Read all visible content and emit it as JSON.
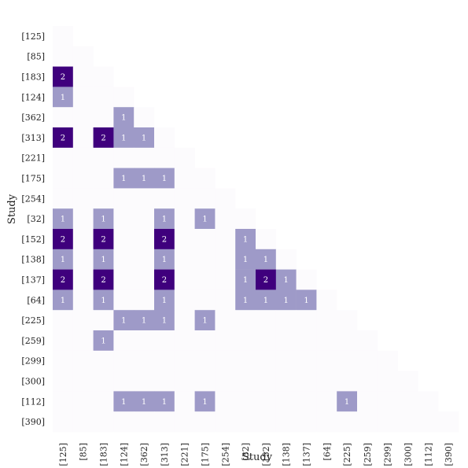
{
  "chart_data": {
    "type": "heatmap",
    "xlabel": "Study",
    "ylabel": "Study",
    "studies": [
      "[125]",
      "[85]",
      "[183]",
      "[124]",
      "[362]",
      "[313]",
      "[221]",
      "[175]",
      "[254]",
      "[32]",
      "[152]",
      "[138]",
      "[137]",
      "[64]",
      "[225]",
      "[259]",
      "[299]",
      "[300]",
      "[112]",
      "[390]"
    ],
    "matrix": [
      [
        0
      ],
      [
        0,
        0
      ],
      [
        2,
        0,
        0
      ],
      [
        1,
        0,
        0,
        0
      ],
      [
        0,
        0,
        0,
        1,
        0
      ],
      [
        2,
        0,
        2,
        1,
        1,
        0
      ],
      [
        0,
        0,
        0,
        0,
        0,
        0,
        0
      ],
      [
        0,
        0,
        0,
        1,
        1,
        1,
        0,
        0
      ],
      [
        0,
        0,
        0,
        0,
        0,
        0,
        0,
        0,
        0
      ],
      [
        1,
        0,
        1,
        0,
        0,
        1,
        0,
        1,
        0,
        0
      ],
      [
        2,
        0,
        2,
        0,
        0,
        2,
        0,
        0,
        0,
        1,
        0
      ],
      [
        1,
        0,
        1,
        0,
        0,
        1,
        0,
        0,
        0,
        1,
        1,
        0
      ],
      [
        2,
        0,
        2,
        0,
        0,
        2,
        0,
        0,
        0,
        1,
        2,
        1,
        0
      ],
      [
        1,
        0,
        1,
        0,
        0,
        1,
        0,
        0,
        0,
        1,
        1,
        1,
        1,
        0
      ],
      [
        0,
        0,
        0,
        1,
        1,
        1,
        0,
        1,
        0,
        0,
        0,
        0,
        0,
        0,
        0
      ],
      [
        0,
        0,
        1,
        0,
        0,
        0,
        0,
        0,
        0,
        0,
        0,
        0,
        0,
        0,
        0,
        0
      ],
      [
        0,
        0,
        0,
        0,
        0,
        0,
        0,
        0,
        0,
        0,
        0,
        0,
        0,
        0,
        0,
        0,
        0
      ],
      [
        0,
        0,
        0,
        0,
        0,
        0,
        0,
        0,
        0,
        0,
        0,
        0,
        0,
        0,
        0,
        0,
        0,
        0
      ],
      [
        0,
        0,
        0,
        1,
        1,
        1,
        0,
        1,
        0,
        0,
        0,
        0,
        0,
        0,
        1,
        0,
        0,
        0,
        0
      ],
      [
        0,
        0,
        0,
        0,
        0,
        0,
        0,
        0,
        0,
        0,
        0,
        0,
        0,
        0,
        0,
        0,
        0,
        0,
        0,
        0
      ]
    ],
    "colors": {
      "0": "#fcfbfd",
      "1": "#9e9ac8",
      "2": "#3f007d"
    },
    "label_color": "#ffffff",
    "show_zero_labels": false,
    "grid": false,
    "legend": "none"
  }
}
